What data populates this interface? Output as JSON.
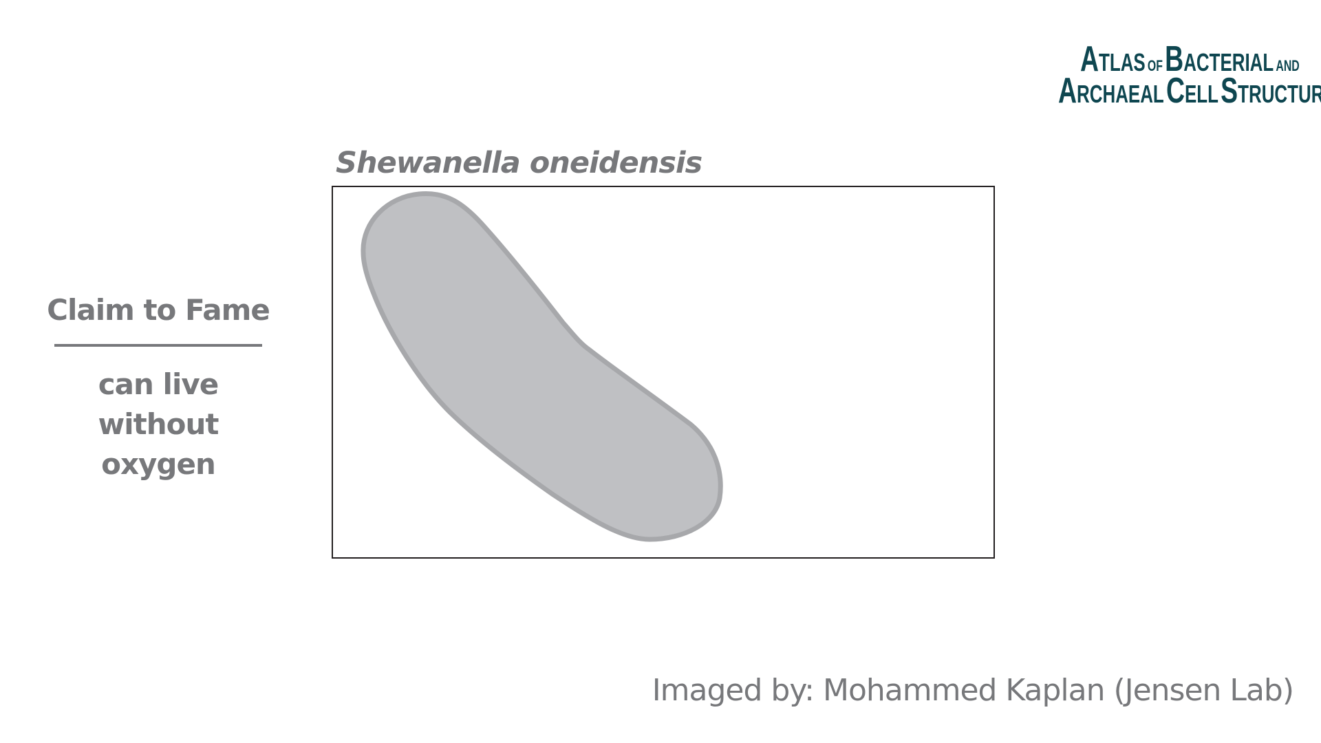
{
  "logo": {
    "line1_a": "A",
    "line1_rest": "TLAS",
    "line1_of": "OF",
    "line1_b": "B",
    "line1_b_rest": "ACTERIAL",
    "line1_and": "AND",
    "line2_a": "A",
    "line2_a_rest": "RCHAEAL",
    "line2_c": "C",
    "line2_c_rest": "ELL",
    "line2_s": "S",
    "line2_s_rest": "TRUCTURE"
  },
  "species": {
    "title": "Shewanella oneidensis"
  },
  "fame": {
    "title": "Claim to Fame",
    "description_line1": "can live without",
    "description_line2": "oxygen"
  },
  "credit": {
    "text": "Imaged by: Mohammed Kaplan (Jensen Lab)"
  },
  "colors": {
    "logo": "#0e4650",
    "text_gray": "#77787b",
    "cell_fill": "#bfc0c3",
    "cell_stroke": "#a7a8ab",
    "frame_border": "#231f20",
    "background": "#ffffff"
  }
}
